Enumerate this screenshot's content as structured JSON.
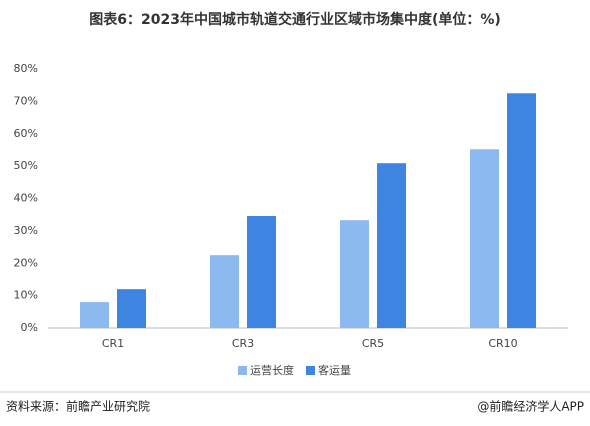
{
  "chart_data": {
    "type": "bar",
    "title": "图表6：2023年中国城市轨道交通行业区域市场集中度(单位：%)",
    "categories": [
      "CR1",
      "CR3",
      "CR5",
      "CR10"
    ],
    "series": [
      {
        "name": "运营长度",
        "color": "#8db9f1",
        "values": [
          8.0,
          22.5,
          33.3,
          55.2
        ]
      },
      {
        "name": "客运量",
        "color": "#3d85e0",
        "values": [
          12.0,
          34.6,
          50.9,
          72.5
        ]
      }
    ],
    "ylim": [
      0,
      80
    ],
    "yticks": [
      {
        "value": 0,
        "label": "0%"
      },
      {
        "value": 10,
        "label": "10%"
      },
      {
        "value": 20,
        "label": "20%"
      },
      {
        "value": 30,
        "label": "30%"
      },
      {
        "value": 40,
        "label": "40%"
      },
      {
        "value": 50,
        "label": "50%"
      },
      {
        "value": 60,
        "label": "60%"
      },
      {
        "value": 70,
        "label": "70%"
      },
      {
        "value": 80,
        "label": "80%"
      }
    ],
    "grid": false,
    "source": "资料来源：前瞻产业研究院",
    "credit": "@前瞻经济学人APP"
  }
}
